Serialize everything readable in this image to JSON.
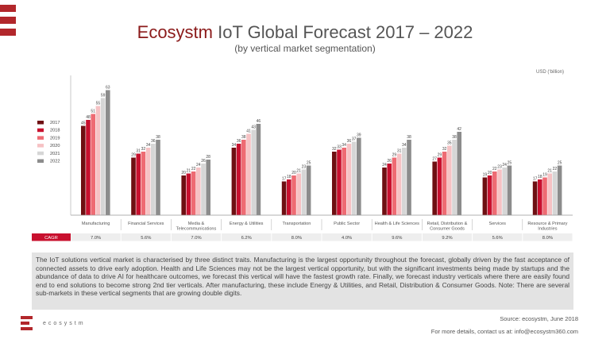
{
  "header": {
    "title_brand": "Ecosystm",
    "title_rest": " IoT Global Forecast 2017 – 2022",
    "subtitle": "(by vertical market segmentation)",
    "unit": "USD (‘billion)"
  },
  "chart_data": {
    "type": "bar",
    "categories": [
      "Manufacturing",
      "Financial Services",
      "Media & Telecommunications",
      "Energy & Utilities",
      "Transportation",
      "Public Sector",
      "Health & Life Sciences",
      "Retail, Distribution & Consumer Goods",
      "Services",
      "Resource & Primary Industries"
    ],
    "category_lines": [
      [
        "Manufacturing"
      ],
      [
        "Financial Services"
      ],
      [
        "Media &",
        "Telecommunications"
      ],
      [
        "Energy & Utilities"
      ],
      [
        "Transportation"
      ],
      [
        "Public Sector"
      ],
      [
        "Health & Life Sciences"
      ],
      [
        "Retail, Distribution &",
        "Consumer Goods"
      ],
      [
        "Services"
      ],
      [
        "Resource & Primary",
        "Industries"
      ]
    ],
    "series": [
      {
        "name": "2017",
        "color": "#6e0f12",
        "values": [
          45,
          29,
          20,
          34,
          17,
          32,
          24,
          27,
          19,
          17
        ]
      },
      {
        "name": "2018",
        "color": "#c8102e",
        "values": [
          48,
          31,
          21,
          36,
          18,
          33,
          26,
          29,
          20,
          18
        ]
      },
      {
        "name": "2019",
        "color": "#ee6b73",
        "values": [
          51,
          32,
          22,
          38,
          20,
          34,
          29,
          32,
          22,
          19
        ]
      },
      {
        "name": "2020",
        "color": "#f6c2c4",
        "values": [
          55,
          34,
          24,
          41,
          21,
          36,
          31,
          35,
          23,
          21
        ]
      },
      {
        "name": "2021",
        "color": "#d6d6d6",
        "values": [
          59,
          36,
          26,
          43,
          23,
          37,
          34,
          38,
          24,
          22
        ]
      },
      {
        "name": "2022",
        "color": "#8c8c8c",
        "values": [
          63,
          38,
          28,
          46,
          25,
          39,
          38,
          42,
          25,
          25
        ]
      }
    ],
    "ylim": [
      0,
      70
    ],
    "grid": false,
    "legend": "left",
    "cagr_label": "CAGR",
    "cagr": [
      "7.0%",
      "5.6%",
      "7.0%",
      "6.2%",
      "8.0%",
      "4.0%",
      "9.6%",
      "9.2%",
      "5.6%",
      "8.0%"
    ]
  },
  "description": "The IoT solutions vertical market is characterised by three distinct traits. Manufacturing is the largest opportunity throughout the forecast, globally driven by the fast acceptance of connected assets to drive early adoption. Health and Life Sciences may not be the largest vertical opportunity, but with the significant investments being made by startups and the abundance of data to drive AI for healthcare outcomes, we forecast this vertical will have the fastest growth rate. Finally, we forecast industry verticals where there are easily found end to end solutions to become strong 2nd tier verticals. After manufacturing, these include Energy & Utilities, and Retail, Distribution & Consumer Goods. Note: There are several sub-markets in these vertical segments that are growing double digits.",
  "footer": {
    "source": "Source: ecosystm, June 2018",
    "contact": "For more details, contact us at: info@ecosystm360.com",
    "logo_text": "ecosystm"
  },
  "colors": {
    "brand": "#b2272b",
    "cagr_bg": "#c8102e",
    "cagr_row": "#eeeeee",
    "desc_bg": "#e3e3e3"
  }
}
